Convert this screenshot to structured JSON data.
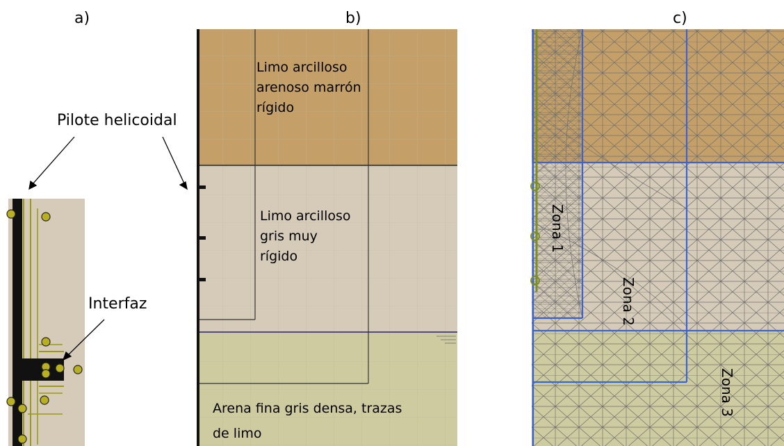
{
  "panels": {
    "a": "a)",
    "b": "b)",
    "c": "c)"
  },
  "annotations": {
    "pile": "Pilote helicoidal",
    "interface": "Interfaz"
  },
  "soil_layers": [
    {
      "lines": [
        "Limo arcilloso",
        "arenoso marrón",
        "rígido"
      ],
      "color": "#c4a068"
    },
    {
      "lines": [
        "Limo arcilloso",
        "gris muy",
        "rígido"
      ],
      "color": "#d5cbb8"
    },
    {
      "lines": [
        "Arena fina gris densa, trazas",
        "de limo"
      ],
      "color": "#cfcba0"
    }
  ],
  "zones": [
    "Zona 1",
    "Zona 2",
    "Zona 3"
  ],
  "colors": {
    "clay_brown": "#c4a068",
    "clay_grey": "#d5cbb8",
    "sand": "#cfcba0",
    "mesh": "#6f6f6f",
    "zone_border": "#3a63d6",
    "interface": "#9a9a16",
    "pile": "#111111"
  }
}
